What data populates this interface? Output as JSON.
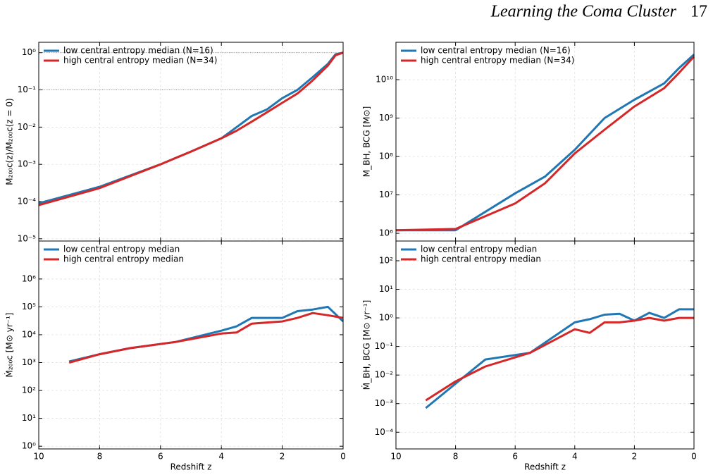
{
  "header": {
    "title": "Learning the Coma Cluster",
    "page": "17"
  },
  "chart_data": [
    {
      "type": "line",
      "ylabel": "M₂₀₀c(z)/M₂₀₀c(z = 0)",
      "yscale": "log",
      "grid": true,
      "legend": "upper left",
      "xticklabels": false,
      "xlim": [
        10,
        0
      ],
      "xticks": [
        10,
        8,
        6,
        4,
        2,
        0
      ],
      "ylim": [
        8.7e-06,
        1.9
      ],
      "yticks": [
        {
          "value": 1e-05,
          "label": "10⁻⁵"
        },
        {
          "value": 0.0001,
          "label": "10⁻⁴"
        },
        {
          "value": 0.001,
          "label": "10⁻³"
        },
        {
          "value": 0.01,
          "label": "10⁻²"
        },
        {
          "value": 0.1,
          "label": "10⁻¹"
        },
        {
          "value": 1,
          "label": "10⁰"
        }
      ],
      "hlines": [
        1,
        0.1
      ],
      "x": [
        10,
        8,
        6,
        5,
        4,
        3.5,
        3,
        2.5,
        2,
        1.5,
        1,
        0.5,
        0.25,
        0
      ],
      "series": [
        {
          "name": "low central entropy median (N=16)",
          "color": "#1f77b4",
          "values": [
            9e-05,
            0.00025,
            0.001,
            0.0022,
            0.005,
            0.01,
            0.02,
            0.03,
            0.06,
            0.1,
            0.22,
            0.5,
            0.9,
            1
          ]
        },
        {
          "name": "high central entropy median (N=34)",
          "color": "#d62728",
          "values": [
            8e-05,
            0.00023,
            0.001,
            0.0022,
            0.005,
            0.008,
            0.014,
            0.025,
            0.045,
            0.08,
            0.18,
            0.45,
            0.85,
            1
          ]
        }
      ]
    },
    {
      "type": "line",
      "ylabel": "M_BH, BCG  [M⊙]",
      "yscale": "log",
      "grid": true,
      "legend": "upper left",
      "xticklabels": false,
      "xlim": [
        10,
        0
      ],
      "xticks": [
        10,
        8,
        6,
        4,
        2,
        0
      ],
      "ylim": [
        630000.0,
        94000000000.0
      ],
      "yticks": [
        {
          "value": 1000000.0,
          "label": "10⁶"
        },
        {
          "value": 10000000.0,
          "label": "10⁷"
        },
        {
          "value": 100000000.0,
          "label": "10⁸"
        },
        {
          "value": 1000000000.0,
          "label": "10⁹"
        },
        {
          "value": 10000000000.0,
          "label": "10¹⁰"
        }
      ],
      "x": [
        10,
        8,
        6,
        5,
        4,
        3,
        2,
        1,
        0.5,
        0
      ],
      "series": [
        {
          "name": "low central entropy median (N=16)",
          "color": "#1f77b4",
          "values": [
            1200000.0,
            1200000.0,
            11000000.0,
            30000000.0,
            150000000.0,
            1000000000.0,
            3000000000.0,
            8000000000.0,
            20000000000.0,
            45000000000.0
          ]
        },
        {
          "name": "high central entropy median (N=34)",
          "color": "#d62728",
          "values": [
            1200000.0,
            1300000.0,
            6000000.0,
            20000000.0,
            120000000.0,
            500000000.0,
            2000000000.0,
            6000000000.0,
            15000000000.0,
            40000000000.0
          ]
        }
      ]
    },
    {
      "type": "line",
      "ylabel": "Ṁ₂₀₀c [M⊙ yr⁻¹]",
      "xlabel": "Redshift z",
      "yscale": "log",
      "grid": true,
      "legend": "upper left",
      "xticklabels": true,
      "xlim": [
        10,
        0
      ],
      "xticks": [
        10,
        8,
        6,
        4,
        2,
        0
      ],
      "ylim": [
        0.8,
        23000000.0
      ],
      "yticks": [
        {
          "value": 1,
          "label": "10⁰"
        },
        {
          "value": 10,
          "label": "10¹"
        },
        {
          "value": 100,
          "label": "10²"
        },
        {
          "value": 1000,
          "label": "10³"
        },
        {
          "value": 10000,
          "label": "10⁴"
        },
        {
          "value": 100000,
          "label": "10⁵"
        },
        {
          "value": 1000000,
          "label": "10⁶"
        }
      ],
      "x": [
        9,
        8,
        7,
        5.5,
        4,
        3.5,
        3,
        2,
        1.5,
        1,
        0.5,
        0
      ],
      "series": [
        {
          "name": "low central entropy median",
          "color": "#1f77b4",
          "values": [
            1100,
            2000,
            3300,
            5500,
            14000,
            20000,
            40000,
            40000,
            70000,
            80000,
            100000,
            30000
          ]
        },
        {
          "name": "high central entropy median",
          "color": "#d62728",
          "values": [
            1000,
            2000,
            3300,
            5500,
            11000,
            12000,
            25000,
            30000,
            40000,
            60000,
            50000,
            40000
          ]
        }
      ]
    },
    {
      "type": "line",
      "ylabel": "Ṁ_BH, BCG  [M⊙ yr⁻¹]",
      "xlabel": "Redshift z",
      "yscale": "log",
      "grid": true,
      "legend": "upper left",
      "xticklabels": true,
      "xlim": [
        10,
        0
      ],
      "xticks": [
        10,
        8,
        6,
        4,
        2,
        0
      ],
      "ylim": [
        2.6e-05,
        490
      ],
      "yticks": [
        {
          "value": 0.0001,
          "label": "10⁻⁴"
        },
        {
          "value": 0.001,
          "label": "10⁻³"
        },
        {
          "value": 0.01,
          "label": "10⁻²"
        },
        {
          "value": 0.1,
          "label": "10⁻¹"
        },
        {
          "value": 1,
          "label": "10⁰"
        },
        {
          "value": 10,
          "label": "10¹"
        },
        {
          "value": 100,
          "label": "10²"
        }
      ],
      "x": [
        9,
        8,
        7,
        5.5,
        4,
        3.5,
        3,
        2.5,
        2,
        1.5,
        1,
        0.5,
        0
      ],
      "series": [
        {
          "name": "low central entropy median",
          "color": "#1f77b4",
          "values": [
            0.0007,
            0.005,
            0.035,
            0.06,
            0.7,
            0.9,
            1.3,
            1.4,
            0.8,
            1.5,
            1,
            2,
            2
          ]
        },
        {
          "name": "high central entropy median",
          "color": "#d62728",
          "values": [
            0.0013,
            0.006,
            0.02,
            0.06,
            0.4,
            0.3,
            0.7,
            0.7,
            0.8,
            1,
            0.8,
            1,
            1
          ]
        }
      ]
    }
  ]
}
